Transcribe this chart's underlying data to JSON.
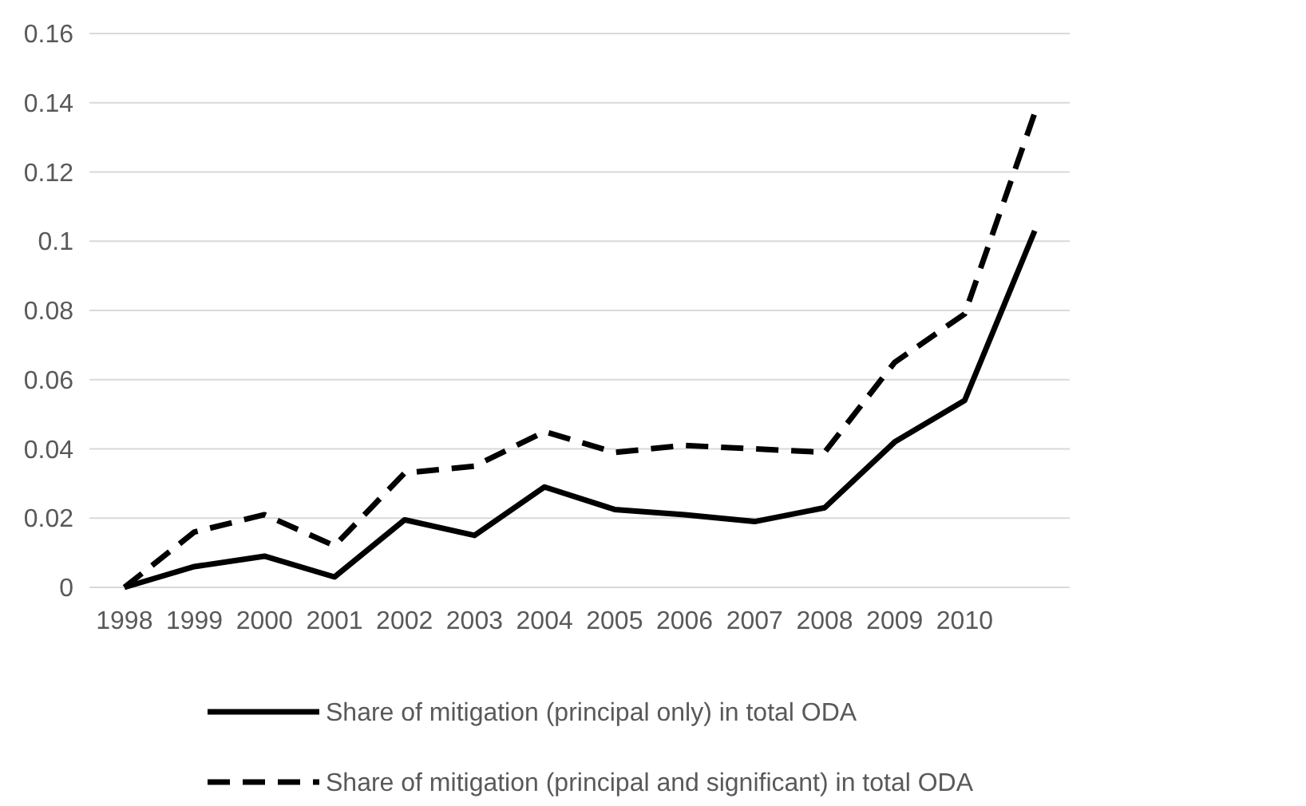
{
  "chart_data": {
    "type": "line",
    "categories": [
      "1998",
      "1999",
      "2000",
      "2001",
      "2002",
      "2003",
      "2004",
      "2005",
      "2006",
      "2007",
      "2008",
      "2009",
      "2010",
      null
    ],
    "series": [
      {
        "name": "Share of mitigation (principal only) in total ODA",
        "color": "#000000",
        "line_style": "solid",
        "values": [
          0,
          0.006,
          0.009,
          0.003,
          0.0195,
          0.015,
          0.029,
          0.0225,
          0.021,
          0.019,
          0.023,
          0.042,
          0.054,
          0.103
        ]
      },
      {
        "name": "Share of mitigation (principal and significant) in total ODA",
        "color": "#000000",
        "line_style": "dashed",
        "values": [
          0,
          0.016,
          0.021,
          0.012,
          0.033,
          0.035,
          0.045,
          0.039,
          0.041,
          0.04,
          0.039,
          0.065,
          0.079,
          0.137
        ]
      }
    ],
    "ylim": [
      0,
      0.16
    ],
    "yticks": [
      0,
      0.02,
      0.04,
      0.06,
      0.08,
      0.1,
      0.12,
      0.14,
      0.16
    ],
    "grid": "y",
    "legend": "bottom",
    "marker": "none"
  }
}
